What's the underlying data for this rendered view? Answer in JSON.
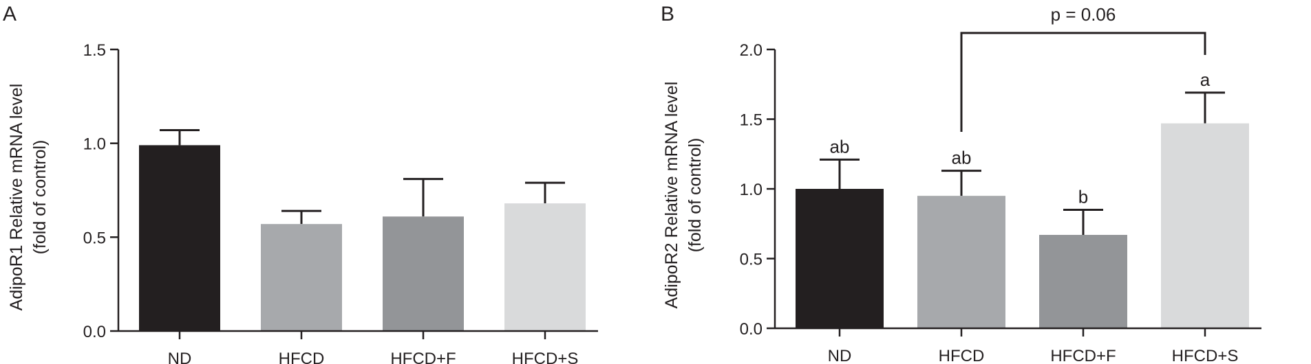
{
  "chart_data": [
    {
      "type": "bar",
      "panel_label": "A",
      "categories": [
        "ND",
        "HFCD",
        "HFCD+F",
        "HFCD+S"
      ],
      "values": [
        0.99,
        0.57,
        0.61,
        0.68
      ],
      "errors": [
        0.08,
        0.07,
        0.2,
        0.11
      ],
      "colors": [
        "#231f20",
        "#a7a9ac",
        "#939598",
        "#d9dadb"
      ],
      "ylabel_line1": "AdipoR1 Relative mRNA level",
      "ylabel_line2": "(fold of control)",
      "ylim": [
        0,
        1.5
      ],
      "yticks": [
        "0.0",
        "0.5",
        "1.0",
        "1.5"
      ],
      "letters": [
        "",
        "",
        "",
        ""
      ]
    },
    {
      "type": "bar",
      "panel_label": "B",
      "categories": [
        "ND",
        "HFCD",
        "HFCD+F",
        "HFCD+S"
      ],
      "values": [
        1.0,
        0.95,
        0.67,
        1.47
      ],
      "errors": [
        0.21,
        0.18,
        0.18,
        0.22
      ],
      "colors": [
        "#231f20",
        "#a7a9ac",
        "#939598",
        "#d9dadb"
      ],
      "ylabel_line1": "AdipoR2 Relative mRNA level",
      "ylabel_line2": "(fold of control)",
      "ylim": [
        0,
        2.0
      ],
      "yticks": [
        "0.0",
        "0.5",
        "1.0",
        "1.5",
        "2.0"
      ],
      "letters": [
        "ab",
        "ab",
        "b",
        "a"
      ],
      "bracket": {
        "from_category": 1,
        "to_category": 3,
        "label": "p = 0.06"
      }
    }
  ]
}
